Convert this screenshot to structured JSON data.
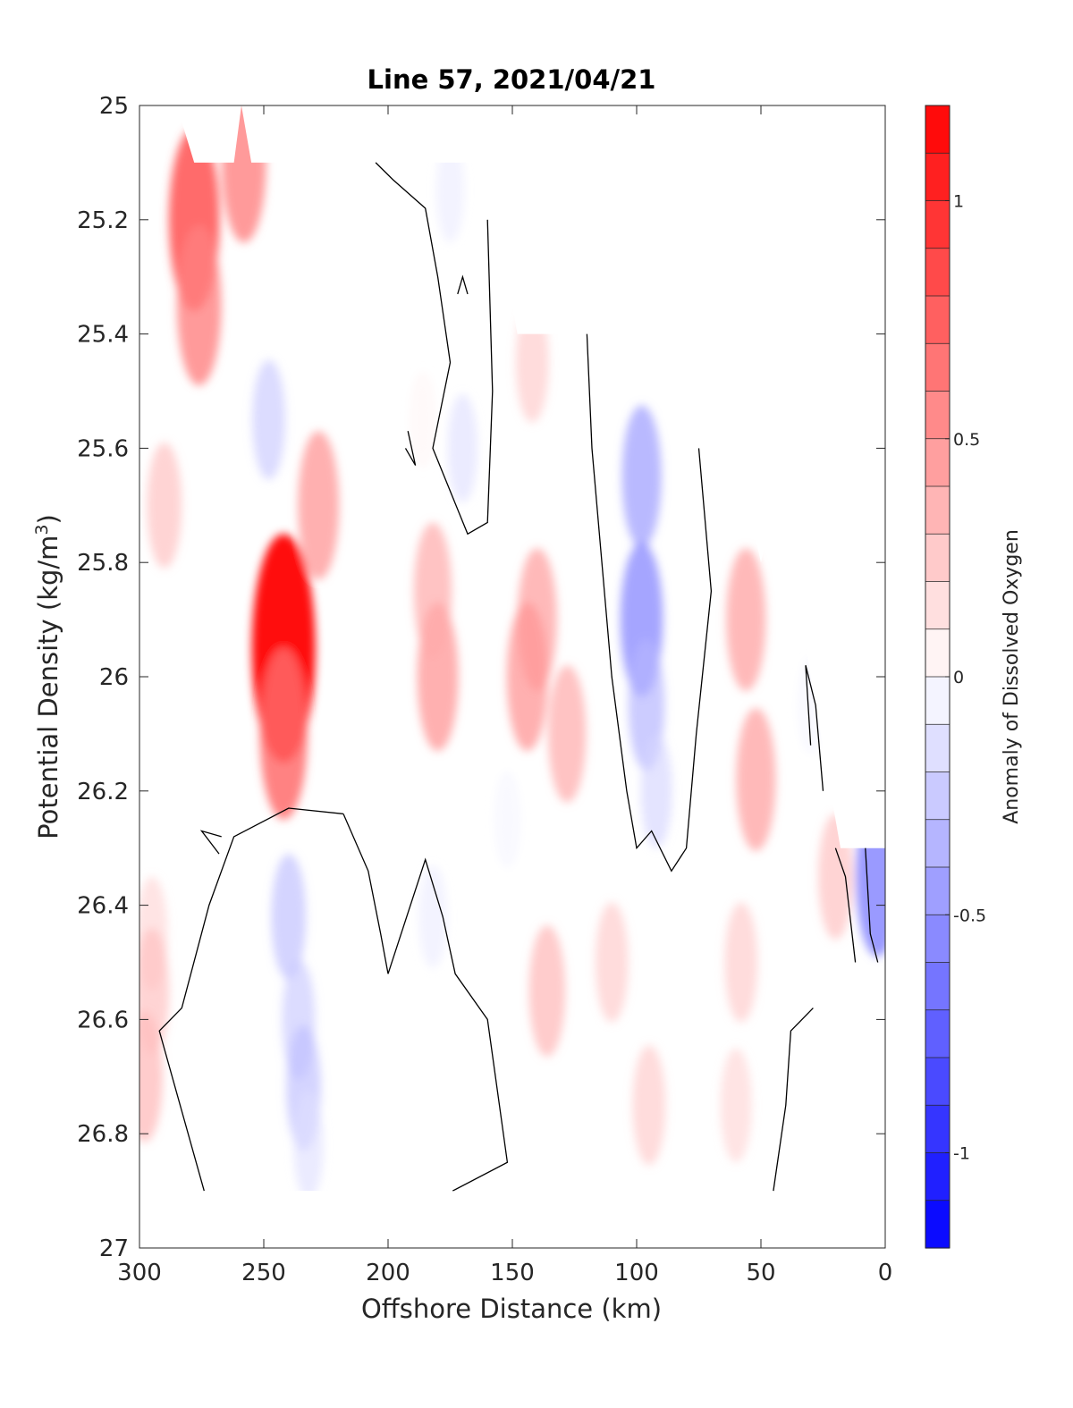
{
  "chart_data": {
    "type": "heatmap",
    "title": "Line 57, 2021/04/21",
    "xlabel": "Offshore Distance (km)",
    "ylabel": "Potential Density (kg/m",
    "ylabel_sup": "3",
    "ylabel_close": ")",
    "colorbar_label": "Anomaly of Dissolved Oxygen",
    "xlim": [
      300,
      0
    ],
    "ylim": [
      25,
      27
    ],
    "y_reversed": true,
    "x_ticks": [
      300,
      250,
      200,
      150,
      100,
      50,
      0
    ],
    "x_tick_labels": [
      "300",
      "250",
      "200",
      "150",
      "100",
      "50",
      "0"
    ],
    "y_ticks": [
      25,
      25.2,
      25.4,
      25.6,
      25.8,
      26,
      26.2,
      26.4,
      26.6,
      26.8,
      27
    ],
    "y_tick_labels": [
      "25",
      "25.2",
      "25.4",
      "25.6",
      "25.8",
      "26",
      "26.2",
      "26.4",
      "26.6",
      "26.8",
      "27"
    ],
    "clim": [
      -1.2,
      1.2
    ],
    "colorbar_ticks": [
      1,
      0.5,
      0,
      -0.5,
      -1
    ],
    "colorbar_tick_labels": [
      "1",
      "0.5",
      "0",
      "-0.5",
      "-1"
    ],
    "colorbar_levels": 24,
    "colormap": {
      "negative": "#0000ff",
      "zero": "#ffffff",
      "positive": "#ff0000"
    },
    "grid": false,
    "series": [
      {
        "values": [
          {
            "x": 278,
            "y": 25.2,
            "v": 0.8
          },
          {
            "x": 276,
            "y": 25.35,
            "v": 0.6
          },
          {
            "x": 258,
            "y": 25.1,
            "v": 0.6
          },
          {
            "x": 242,
            "y": 25.95,
            "v": 1.2
          },
          {
            "x": 242,
            "y": 26.1,
            "v": 0.7
          },
          {
            "x": 228,
            "y": 25.7,
            "v": 0.5
          },
          {
            "x": 248,
            "y": 25.55,
            "v": -0.25
          },
          {
            "x": 290,
            "y": 25.7,
            "v": 0.3
          },
          {
            "x": 240,
            "y": 26.42,
            "v": -0.3
          },
          {
            "x": 236,
            "y": 26.6,
            "v": -0.25
          },
          {
            "x": 234,
            "y": 26.72,
            "v": -0.3
          },
          {
            "x": 232,
            "y": 26.82,
            "v": -0.15
          },
          {
            "x": 180,
            "y": 26.0,
            "v": 0.5
          },
          {
            "x": 182,
            "y": 25.85,
            "v": 0.4
          },
          {
            "x": 186,
            "y": 25.55,
            "v": 0.05
          },
          {
            "x": 182,
            "y": 26.42,
            "v": -0.1
          },
          {
            "x": 170,
            "y": 25.6,
            "v": -0.15
          },
          {
            "x": 175,
            "y": 25.15,
            "v": -0.1
          },
          {
            "x": 140,
            "y": 25.9,
            "v": 0.45
          },
          {
            "x": 144,
            "y": 26.0,
            "v": 0.5
          },
          {
            "x": 142,
            "y": 25.45,
            "v": 0.25
          },
          {
            "x": 152,
            "y": 26.25,
            "v": -0.05
          },
          {
            "x": 128,
            "y": 26.1,
            "v": 0.4
          },
          {
            "x": 136,
            "y": 26.55,
            "v": 0.35
          },
          {
            "x": 110,
            "y": 26.5,
            "v": 0.25
          },
          {
            "x": 95,
            "y": 26.75,
            "v": 0.25
          },
          {
            "x": 98,
            "y": 25.65,
            "v": -0.45
          },
          {
            "x": 98,
            "y": 25.9,
            "v": -0.55
          },
          {
            "x": 96,
            "y": 26.05,
            "v": -0.35
          },
          {
            "x": 92,
            "y": 26.2,
            "v": -0.2
          },
          {
            "x": 56,
            "y": 25.9,
            "v": 0.45
          },
          {
            "x": 52,
            "y": 26.18,
            "v": 0.45
          },
          {
            "x": 58,
            "y": 26.5,
            "v": 0.25
          },
          {
            "x": 60,
            "y": 26.75,
            "v": 0.2
          },
          {
            "x": 30,
            "y": 26.05,
            "v": -0.05
          },
          {
            "x": 20,
            "y": 26.35,
            "v": 0.3
          },
          {
            "x": 3,
            "y": 26.35,
            "v": -0.6
          },
          {
            "x": 295,
            "y": 26.45,
            "v": 0.2
          },
          {
            "x": 298,
            "y": 26.7,
            "v": 0.35
          },
          {
            "x": 295,
            "y": 26.55,
            "v": 0.3
          }
        ]
      }
    ]
  }
}
